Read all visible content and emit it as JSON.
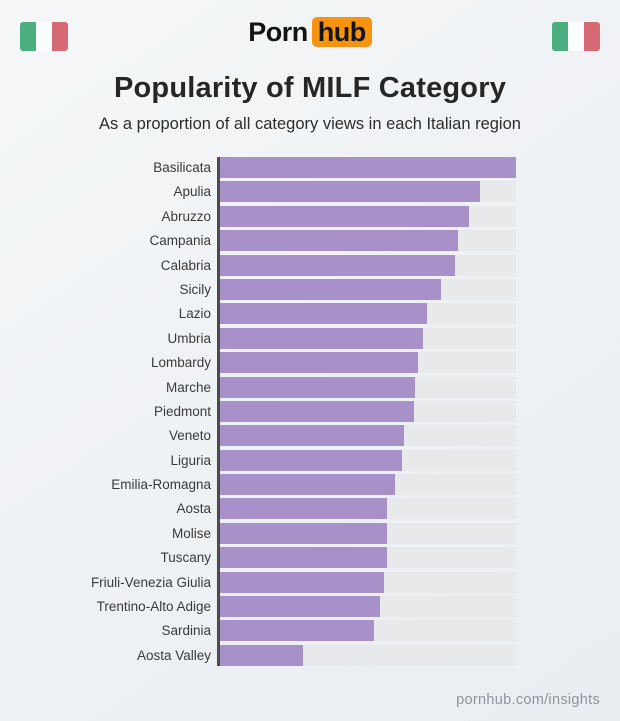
{
  "header": {
    "logo": {
      "part1": "Porn",
      "part2": "hub",
      "accent_color": "#f7930e"
    },
    "flag_colors": [
      "#4bae7e",
      "#fafcfe",
      "#d56a74"
    ],
    "title": "Popularity of MILF Category",
    "subtitle": "As a proportion of all category views in each Italian region"
  },
  "chart_data": {
    "type": "bar",
    "orientation": "horizontal",
    "title": "Popularity of MILF Category",
    "subtitle": "As a proportion of all category views in each Italian region",
    "categories": [
      "Basilicata",
      "Apulia",
      "Abruzzo",
      "Campania",
      "Calabria",
      "Sicily",
      "Lazio",
      "Umbria",
      "Lombardy",
      "Marche",
      "Piedmont",
      "Veneto",
      "Liguria",
      "Emilia-Romagna",
      "Aosta",
      "Molise",
      "Tuscany",
      "Friuli-Venezia Giulia",
      "Trentino-Alto Adige",
      "Sardinia",
      "Aosta Valley"
    ],
    "values": [
      100,
      88,
      84,
      80.5,
      79.5,
      74.5,
      70,
      68.5,
      67,
      66,
      65.5,
      62,
      61.5,
      59,
      56.5,
      56.5,
      56.5,
      55.5,
      54,
      52,
      28
    ],
    "values_unit": "percent of longest bar (no numeric axis labels shown in image)",
    "value_labels_shown": false,
    "axis_ticks_shown": false,
    "grid": false,
    "legend": false,
    "bar_color": "#a891c9",
    "track_color": "#e7e9ea",
    "axis_color": "#4c4c4c",
    "label_color": "#3a3a3a"
  },
  "footer": {
    "text": "pornhub.com/insights"
  }
}
